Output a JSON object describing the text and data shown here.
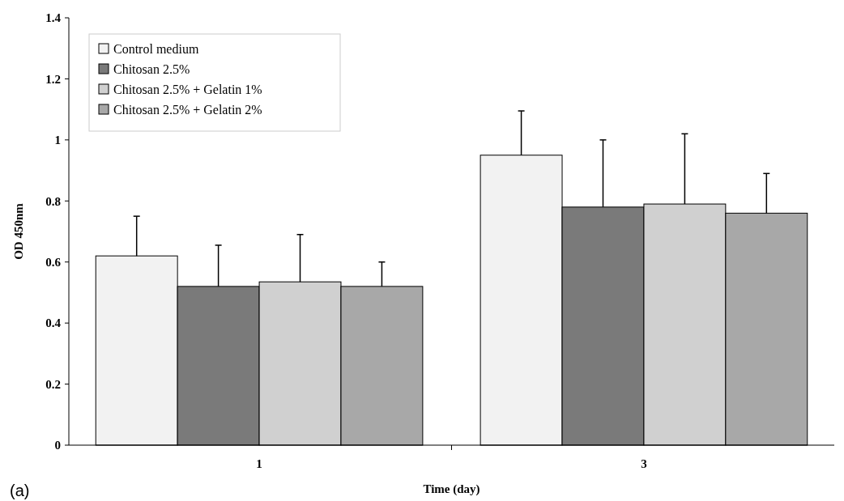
{
  "chart_data": {
    "type": "bar",
    "xlabel": "Time (day)",
    "ylabel": "OD 450nm",
    "categories": [
      "1",
      "3"
    ],
    "series": [
      {
        "name": "Control medium",
        "color": "#f2f2f2",
        "values": [
          0.62,
          0.95
        ],
        "errors": [
          [
            0.62,
            0.75
          ],
          [
            0.95,
            1.095
          ]
        ]
      },
      {
        "name": "Chitosan 2.5%",
        "color": "#7a7a7a",
        "values": [
          0.52,
          0.78
        ],
        "errors": [
          [
            0.52,
            0.655
          ],
          [
            0.78,
            1
          ]
        ]
      },
      {
        "name": "Chitosan 2.5% + Gelatin 1%",
        "color": "#d0d0d0",
        "values": [
          0.535,
          0.79
        ],
        "errors": [
          [
            0.535,
            0.69
          ],
          [
            0.79,
            1.02
          ]
        ]
      },
      {
        "name": "Chitosan 2.5% + Gelatin 2%",
        "color": "#a8a8a8",
        "values": [
          0.52,
          0.76
        ],
        "errors": [
          [
            0.52,
            0.6
          ],
          [
            0.76,
            0.89
          ]
        ]
      }
    ],
    "ylim": [
      0,
      1.4
    ],
    "yticks": [
      0,
      0.2,
      0.4,
      0.6,
      0.8,
      1,
      1.2,
      1.4
    ],
    "legend": "top left",
    "annotations": [
      "(a)"
    ]
  }
}
